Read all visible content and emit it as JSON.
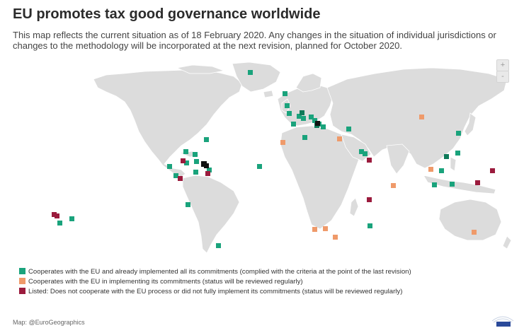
{
  "title": "EU promotes tax good governance worldwide",
  "subtitle": "This map reflects the current situation as of 18 February 2020. Any changes in the situation of individual jurisdictions or changes to the methodology will be incorporated at the next revision, planned for October 2020.",
  "zoom": {
    "in_label": "+",
    "out_label": "-"
  },
  "colors": {
    "green": "#1aa37c",
    "orange": "#ef9a6a",
    "red": "#9b1b3d",
    "land": "#dcdcdc",
    "border": "#ffffff"
  },
  "legend": [
    {
      "color": "#1aa37c",
      "label": "Cooperates with the EU and already implemented all its commitments (complied with the criteria at the point of the last revision)"
    },
    {
      "color": "#ef9a6a",
      "label": "Cooperates with the EU in implementing its commitments (status will be reviewed regularly)"
    },
    {
      "color": "#9b1b3d",
      "label": "Listed: Does not cooperate with the EU process or did not fully implement its commitments (status will be reviewed regularly)"
    }
  ],
  "credit": "Map: @EuroGeographics"
}
